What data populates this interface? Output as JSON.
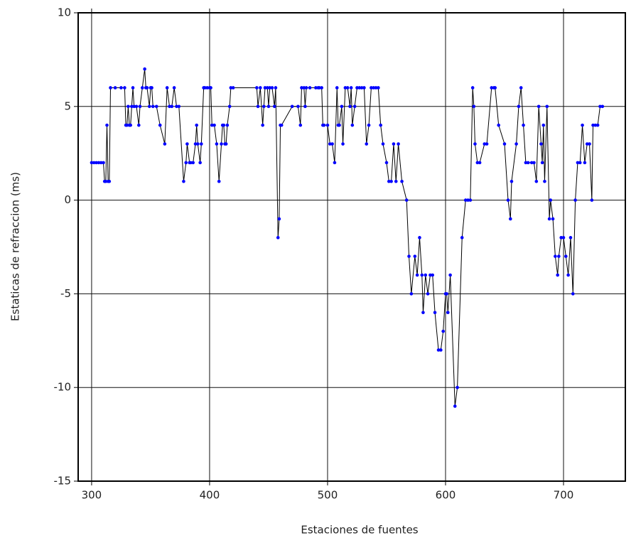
{
  "chart_data": {
    "type": "line",
    "x_label": "Estaciones de fuentes",
    "y_label": "Estaticas de refraccion (ms)",
    "xlim": [
      288.6,
      752.4
    ],
    "ylim": [
      -15,
      10
    ],
    "xticks": [
      300,
      400,
      500,
      600,
      700
    ],
    "yticks": [
      -15,
      -10,
      -5,
      0,
      5,
      10
    ],
    "grid": true,
    "line_color": "#000000",
    "marker_color": "#0000ff",
    "x": [
      300,
      302,
      304,
      306,
      308,
      310,
      311,
      312,
      313,
      314,
      315,
      316,
      320,
      325,
      328,
      329,
      330,
      331,
      332,
      333,
      334,
      335,
      336,
      338,
      340,
      341,
      343,
      345,
      346,
      347,
      349,
      350,
      351,
      352,
      355,
      358,
      362,
      364,
      366,
      368,
      370,
      372,
      374,
      378,
      380,
      381,
      383,
      384,
      386,
      388,
      389,
      390,
      392,
      393,
      395,
      396,
      398,
      400,
      401,
      402,
      404,
      406,
      408,
      410,
      411,
      412,
      413,
      414,
      415,
      417,
      418,
      420,
      440,
      441,
      443,
      445,
      446,
      447,
      449,
      450,
      451,
      453,
      455,
      456,
      458,
      459,
      460,
      461,
      470,
      475,
      477,
      478,
      480,
      481,
      482,
      485,
      490,
      492,
      493,
      495,
      496,
      497,
      500,
      502,
      504,
      506,
      508,
      509,
      510,
      512,
      513,
      515,
      517,
      519,
      520,
      521,
      523,
      525,
      527,
      529,
      531,
      533,
      535,
      537,
      539,
      541,
      543,
      545,
      547,
      550,
      552,
      554,
      556,
      558,
      560,
      563,
      567,
      569,
      571,
      574,
      576,
      578,
      580,
      581,
      583,
      585,
      587,
      589,
      591,
      594,
      596,
      598,
      600,
      601,
      602,
      604,
      608,
      610,
      614,
      617,
      619,
      621,
      623,
      624,
      625,
      627,
      629,
      633,
      635,
      639,
      641,
      642,
      645,
      650,
      653,
      655,
      656,
      660,
      662,
      664,
      666,
      668,
      670,
      673,
      675,
      677,
      679,
      681,
      682,
      683,
      684,
      686,
      688,
      689,
      691,
      693,
      695,
      696,
      698,
      700,
      702,
      704,
      706,
      708,
      710,
      712,
      714,
      716,
      718,
      720,
      722,
      724,
      725,
      727,
      729,
      731,
      733
    ],
    "values": [
      2,
      2,
      2,
      2,
      2,
      2,
      1,
      1,
      4,
      1,
      1,
      6,
      6,
      6,
      6,
      4,
      4,
      5,
      4,
      4,
      5,
      6,
      5,
      5,
      4,
      5,
      6,
      7,
      6,
      6,
      5,
      6,
      6,
      5,
      5,
      4,
      3,
      6,
      5,
      5,
      6,
      5,
      5,
      1,
      2,
      3,
      2,
      2,
      2,
      3,
      4,
      3,
      2,
      3,
      6,
      6,
      6,
      6,
      6,
      4,
      4,
      3,
      1,
      3,
      4,
      4,
      3,
      3,
      4,
      5,
      6,
      6,
      6,
      5,
      6,
      4,
      5,
      6,
      6,
      5,
      6,
      6,
      5,
      6,
      -2,
      -1,
      4,
      4,
      5,
      5,
      4,
      6,
      6,
      5,
      6,
      6,
      6,
      6,
      6,
      6,
      4,
      4,
      4,
      3,
      3,
      2,
      6,
      4,
      4,
      5,
      3,
      6,
      6,
      5,
      6,
      4,
      5,
      6,
      6,
      6,
      6,
      3,
      4,
      6,
      6,
      6,
      6,
      4,
      3,
      2,
      1,
      1,
      3,
      1,
      3,
      1,
      0,
      -3,
      -5,
      -3,
      -4,
      -2,
      -4,
      -6,
      -4,
      -5,
      -4,
      -4,
      -6,
      -8,
      -8,
      -7,
      -5,
      -5,
      -6,
      -4,
      -11,
      -10,
      -2,
      0,
      0,
      0,
      6,
      5,
      3,
      2,
      2,
      3,
      3,
      6,
      6,
      6,
      4,
      3,
      0,
      -1,
      1,
      3,
      5,
      6,
      4,
      2,
      2,
      2,
      2,
      1,
      5,
      3,
      2,
      4,
      1,
      5,
      -1,
      0,
      -1,
      -3,
      -4,
      -3,
      -2,
      -2,
      -3,
      -4,
      -2,
      -5,
      0,
      2,
      2,
      4,
      2,
      3,
      3,
      0,
      4,
      4,
      4,
      5,
      5
    ]
  }
}
